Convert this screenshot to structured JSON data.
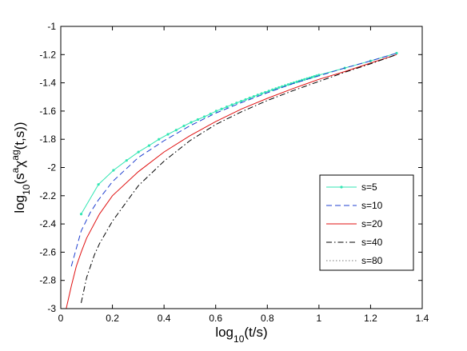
{
  "chart_data": {
    "type": "line",
    "title": "",
    "xlabel": {
      "base": "log",
      "sub": "10",
      "rest": "(t/s)"
    },
    "ylabel": {
      "base": "log",
      "sub": "10",
      "open": "(s",
      "sup1": "a",
      "chi": "χ",
      "sup2": "ag",
      "close": "(t,s))"
    },
    "xlim": [
      0,
      1.4
    ],
    "ylim": [
      -3,
      -1
    ],
    "xticks": [
      0,
      0.2,
      0.4,
      0.6,
      0.8,
      1,
      1.2,
      1.4
    ],
    "xtick_labels": [
      "0",
      "0.2",
      "0.4",
      "0.6",
      "0.8",
      "1",
      "1.2",
      "1.4"
    ],
    "yticks": [
      -3,
      -2.8,
      -2.6,
      -2.4,
      -2.2,
      -2,
      -1.8,
      -1.6,
      -1.4,
      -1.2,
      -1
    ],
    "ytick_labels": [
      "-3",
      "-2.8",
      "-2.6",
      "-2.4",
      "-2.2",
      "-2",
      "-1.8",
      "-1.6",
      "-1.4",
      "-1.2",
      "-1"
    ],
    "grid": false,
    "legend_position": "right",
    "series": [
      {
        "name": "s=5",
        "color": "#33e6b3",
        "style": "solid-marker",
        "x": [
          0.079,
          0.146,
          0.204,
          0.255,
          0.301,
          0.342,
          0.38,
          0.415,
          0.447,
          0.477,
          0.505,
          0.531,
          0.556,
          0.58,
          0.602,
          0.623,
          0.643,
          0.663,
          0.681,
          0.699,
          0.716,
          0.732,
          0.748,
          0.763,
          0.778,
          0.792,
          0.806,
          0.82,
          0.833,
          0.845,
          0.857,
          0.869,
          0.881,
          0.892,
          0.903,
          0.914,
          0.924,
          0.934,
          0.944,
          0.954,
          0.964,
          0.973,
          0.982,
          0.991,
          1.0,
          1.1,
          1.2,
          1.301
        ],
        "y": [
          -2.33,
          -2.12,
          -2.02,
          -1.95,
          -1.89,
          -1.845,
          -1.8,
          -1.765,
          -1.735,
          -1.705,
          -1.68,
          -1.66,
          -1.64,
          -1.62,
          -1.6,
          -1.585,
          -1.57,
          -1.555,
          -1.542,
          -1.53,
          -1.518,
          -1.507,
          -1.496,
          -1.486,
          -1.476,
          -1.467,
          -1.458,
          -1.449,
          -1.441,
          -1.433,
          -1.426,
          -1.419,
          -1.412,
          -1.405,
          -1.399,
          -1.393,
          -1.387,
          -1.381,
          -1.376,
          -1.37,
          -1.365,
          -1.36,
          -1.355,
          -1.35,
          -1.345,
          -1.295,
          -1.245,
          -1.19
        ]
      },
      {
        "name": "s=10",
        "color": "#2040d0",
        "style": "dashed",
        "x": [
          0.041,
          0.079,
          0.114,
          0.146,
          0.2,
          0.3,
          0.4,
          0.5,
          0.6,
          0.7,
          0.8,
          0.9,
          1.0,
          1.1,
          1.2,
          1.301
        ],
        "y": [
          -2.7,
          -2.45,
          -2.32,
          -2.23,
          -2.1,
          -1.93,
          -1.81,
          -1.705,
          -1.615,
          -1.54,
          -1.47,
          -1.405,
          -1.35,
          -1.295,
          -1.245,
          -1.19
        ]
      },
      {
        "name": "s=20",
        "color": "#e01010",
        "style": "solid",
        "x": [
          0.021,
          0.041,
          0.06,
          0.079,
          0.1,
          0.15,
          0.2,
          0.3,
          0.4,
          0.5,
          0.6,
          0.7,
          0.8,
          0.9,
          1.0,
          1.1,
          1.2,
          1.301
        ],
        "y": [
          -3.0,
          -2.84,
          -2.7,
          -2.6,
          -2.5,
          -2.33,
          -2.2,
          -2.03,
          -1.89,
          -1.775,
          -1.675,
          -1.585,
          -1.51,
          -1.44,
          -1.375,
          -1.32,
          -1.26,
          -1.2
        ]
      },
      {
        "name": "s=40",
        "color": "#000000",
        "style": "dashdot",
        "x": [
          0.079,
          0.1,
          0.13,
          0.15,
          0.2,
          0.3,
          0.4,
          0.5,
          0.6,
          0.7,
          0.8,
          0.9,
          1.0,
          1.1,
          1.2,
          1.301
        ],
        "y": [
          -2.96,
          -2.78,
          -2.62,
          -2.54,
          -2.38,
          -2.13,
          -1.955,
          -1.81,
          -1.695,
          -1.605,
          -1.525,
          -1.455,
          -1.39,
          -1.325,
          -1.265,
          -1.2
        ]
      },
      {
        "name": "s=80",
        "color": "#777777",
        "style": "dotted",
        "x": [],
        "y": []
      }
    ]
  }
}
